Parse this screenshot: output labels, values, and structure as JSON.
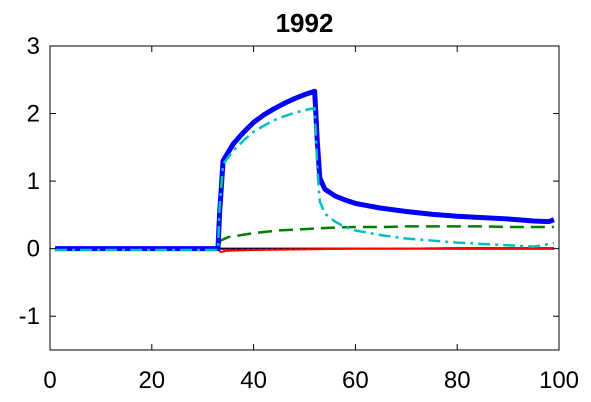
{
  "chart_data": {
    "type": "line",
    "title": "1992",
    "xlabel": "",
    "ylabel": "",
    "xlim": [
      0,
      100
    ],
    "ylim": [
      -1.5,
      3
    ],
    "xticks": [
      0,
      20,
      40,
      60,
      80,
      100
    ],
    "xtick_labels": [
      "0",
      "20",
      "40",
      "60",
      "80",
      "100"
    ],
    "yticks": [
      -1,
      0,
      1,
      2,
      3
    ],
    "ytick_labels": [
      "-1",
      "0",
      "1",
      "2",
      "3"
    ],
    "grid": false,
    "box": true,
    "series": [
      {
        "color": "#0000ff",
        "style": "solid-thick",
        "x": [
          1,
          33,
          33.3,
          34,
          36,
          38,
          40,
          42,
          44,
          46,
          48,
          50,
          52,
          52.5,
          53,
          54,
          56,
          58,
          60,
          65,
          70,
          75,
          80,
          85,
          90,
          95,
          98,
          99
        ],
        "y": [
          0.0,
          0.0,
          0.5,
          1.3,
          1.55,
          1.72,
          1.87,
          1.98,
          2.07,
          2.15,
          2.22,
          2.28,
          2.33,
          1.6,
          1.05,
          0.88,
          0.78,
          0.72,
          0.67,
          0.6,
          0.55,
          0.51,
          0.48,
          0.46,
          0.44,
          0.41,
          0.4,
          0.43
        ]
      },
      {
        "color": "#00bfbf",
        "style": "dashdot",
        "x": [
          1,
          33,
          33.3,
          34,
          36,
          38,
          40,
          42,
          44,
          46,
          48,
          50,
          52,
          52.5,
          53,
          54,
          56,
          58,
          60,
          65,
          70,
          75,
          80,
          85,
          90,
          95,
          99
        ],
        "y": [
          -0.02,
          -0.02,
          0.6,
          1.25,
          1.45,
          1.6,
          1.73,
          1.82,
          1.9,
          1.96,
          2.01,
          2.05,
          2.08,
          1.2,
          0.7,
          0.52,
          0.4,
          0.32,
          0.27,
          0.2,
          0.15,
          0.12,
          0.09,
          0.07,
          0.05,
          0.03,
          0.08
        ]
      },
      {
        "color": "#007f00",
        "style": "dashed",
        "x": [
          1,
          33,
          33.5,
          35,
          40,
          45,
          50,
          55,
          60,
          65,
          70,
          75,
          80,
          85,
          90,
          95,
          99
        ],
        "y": [
          0.0,
          0.0,
          0.12,
          0.17,
          0.23,
          0.27,
          0.29,
          0.31,
          0.32,
          0.32,
          0.33,
          0.33,
          0.33,
          0.33,
          0.32,
          0.32,
          0.32
        ]
      },
      {
        "color": "#ff0000",
        "style": "solid",
        "x": [
          1,
          33,
          33.5,
          35,
          40,
          50,
          60,
          70,
          80,
          90,
          99
        ],
        "y": [
          0.0,
          0.0,
          -0.05,
          -0.03,
          -0.02,
          -0.01,
          0.0,
          0.0,
          0.01,
          0.01,
          0.01
        ]
      },
      {
        "color": "#000000",
        "style": "solid",
        "x": [
          1,
          33,
          40,
          50,
          60,
          70,
          80,
          90,
          99
        ],
        "y": [
          0.0,
          0.0,
          0.0,
          0.0,
          0.0,
          0.0,
          0.0,
          0.0,
          0.0
        ]
      },
      {
        "color": "#7f007f",
        "style": "dotted",
        "x": [
          1,
          33,
          40,
          50,
          60,
          70,
          80,
          90,
          99
        ],
        "y": [
          -0.01,
          -0.01,
          -0.01,
          0.0,
          0.0,
          0.0,
          0.0,
          0.0,
          0.0
        ]
      }
    ]
  }
}
